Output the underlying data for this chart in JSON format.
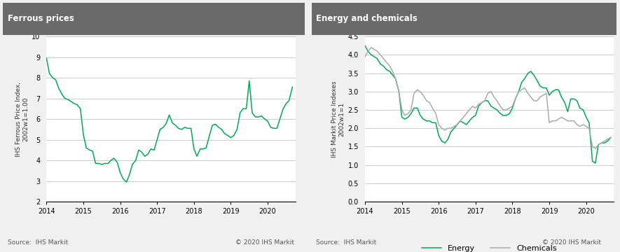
{
  "ferrous_title": "Ferrous prices",
  "energy_title": "Energy and chemicals",
  "ferrous_ylabel": "IHS Ferrous Price Index,\n2002w1=1.00",
  "energy_ylabel": "IHS Markit Price Indexes\n2002w1=1",
  "source_left": "Source:  IHS Markit",
  "source_right": "© 2020 IHS Markit",
  "title_bg": "#6a6a6a",
  "title_color": "#ffffff",
  "ferrous_color": "#00aa55",
  "energy_color": "#00aa55",
  "chemicals_color": "#aaaaaa",
  "grid_color": "#cccccc",
  "bg_color": "#f0f0f0",
  "plot_bg": "#ffffff",
  "ferrous_ylim": [
    2.0,
    10.0
  ],
  "energy_ylim": [
    0.0,
    4.5
  ],
  "ferrous_yticks": [
    2.0,
    3.0,
    4.0,
    5.0,
    6.0,
    7.0,
    8.0,
    9.0,
    10.0
  ],
  "energy_yticks": [
    0.0,
    0.5,
    1.0,
    1.5,
    2.0,
    2.5,
    3.0,
    3.5,
    4.0,
    4.5
  ],
  "ferrous_x": [
    2014.0,
    2014.08,
    2014.17,
    2014.25,
    2014.33,
    2014.42,
    2014.5,
    2014.58,
    2014.67,
    2014.75,
    2014.83,
    2014.92,
    2015.0,
    2015.08,
    2015.17,
    2015.25,
    2015.33,
    2015.42,
    2015.5,
    2015.58,
    2015.67,
    2015.75,
    2015.83,
    2015.92,
    2016.0,
    2016.08,
    2016.17,
    2016.25,
    2016.33,
    2016.42,
    2016.5,
    2016.58,
    2016.67,
    2016.75,
    2016.83,
    2016.92,
    2017.0,
    2017.08,
    2017.17,
    2017.25,
    2017.33,
    2017.42,
    2017.5,
    2017.58,
    2017.67,
    2017.75,
    2017.83,
    2017.92,
    2018.0,
    2018.08,
    2018.17,
    2018.25,
    2018.33,
    2018.42,
    2018.5,
    2018.58,
    2018.67,
    2018.75,
    2018.83,
    2018.92,
    2019.0,
    2019.08,
    2019.17,
    2019.25,
    2019.33,
    2019.42,
    2019.5,
    2019.58,
    2019.67,
    2019.75,
    2019.83,
    2019.92,
    2020.0,
    2020.08,
    2020.17,
    2020.25,
    2020.33,
    2020.42,
    2020.5,
    2020.58,
    2020.67
  ],
  "ferrous_y": [
    8.95,
    8.2,
    8.0,
    7.9,
    7.5,
    7.2,
    7.0,
    6.95,
    6.85,
    6.75,
    6.7,
    6.5,
    5.25,
    4.6,
    4.5,
    4.45,
    3.85,
    3.85,
    3.8,
    3.85,
    3.85,
    4.0,
    4.1,
    3.9,
    3.4,
    3.1,
    2.95,
    3.3,
    3.8,
    4.0,
    4.5,
    4.4,
    4.2,
    4.3,
    4.55,
    4.5,
    5.0,
    5.5,
    5.6,
    5.8,
    6.2,
    5.8,
    5.7,
    5.55,
    5.5,
    5.6,
    5.55,
    5.55,
    4.55,
    4.2,
    4.55,
    4.55,
    4.6,
    5.2,
    5.7,
    5.75,
    5.6,
    5.5,
    5.3,
    5.2,
    5.1,
    5.2,
    5.5,
    6.3,
    6.5,
    6.5,
    7.85,
    6.3,
    6.1,
    6.1,
    6.15,
    6.0,
    5.9,
    5.6,
    5.55,
    5.55,
    6.0,
    6.5,
    6.75,
    6.9,
    7.55
  ],
  "energy_x": [
    2014.0,
    2014.08,
    2014.17,
    2014.25,
    2014.33,
    2014.42,
    2014.5,
    2014.58,
    2014.67,
    2014.75,
    2014.83,
    2014.92,
    2015.0,
    2015.08,
    2015.17,
    2015.25,
    2015.33,
    2015.42,
    2015.5,
    2015.58,
    2015.67,
    2015.75,
    2015.83,
    2015.92,
    2016.0,
    2016.08,
    2016.17,
    2016.25,
    2016.33,
    2016.42,
    2016.5,
    2016.58,
    2016.67,
    2016.75,
    2016.83,
    2016.92,
    2017.0,
    2017.08,
    2017.17,
    2017.25,
    2017.33,
    2017.42,
    2017.5,
    2017.58,
    2017.67,
    2017.75,
    2017.83,
    2017.92,
    2018.0,
    2018.08,
    2018.17,
    2018.25,
    2018.33,
    2018.42,
    2018.5,
    2018.58,
    2018.67,
    2018.75,
    2018.83,
    2018.92,
    2019.0,
    2019.08,
    2019.17,
    2019.25,
    2019.33,
    2019.42,
    2019.5,
    2019.58,
    2019.67,
    2019.75,
    2019.83,
    2019.92,
    2020.0,
    2020.08,
    2020.17,
    2020.25,
    2020.33,
    2020.42,
    2020.5,
    2020.58,
    2020.67
  ],
  "energy_y": [
    4.25,
    4.1,
    4.0,
    3.95,
    3.9,
    3.75,
    3.7,
    3.6,
    3.55,
    3.45,
    3.35,
    3.0,
    2.3,
    2.25,
    2.3,
    2.4,
    2.55,
    2.55,
    2.35,
    2.25,
    2.2,
    2.2,
    2.15,
    2.15,
    1.8,
    1.65,
    1.6,
    1.7,
    1.9,
    2.0,
    2.1,
    2.2,
    2.15,
    2.1,
    2.2,
    2.3,
    2.35,
    2.6,
    2.7,
    2.75,
    2.75,
    2.6,
    2.55,
    2.5,
    2.4,
    2.35,
    2.35,
    2.4,
    2.55,
    2.8,
    3.0,
    3.25,
    3.35,
    3.5,
    3.55,
    3.45,
    3.3,
    3.15,
    3.1,
    3.1,
    2.9,
    3.0,
    3.05,
    3.05,
    2.85,
    2.7,
    2.45,
    2.8,
    2.8,
    2.75,
    2.55,
    2.5,
    2.3,
    2.15,
    1.1,
    1.05,
    1.55,
    1.6,
    1.6,
    1.65,
    1.75
  ],
  "chemicals_y": [
    3.95,
    4.1,
    4.2,
    4.15,
    4.1,
    4.0,
    3.9,
    3.8,
    3.7,
    3.55,
    3.35,
    3.0,
    2.5,
    2.35,
    2.4,
    2.5,
    2.95,
    3.05,
    3.0,
    2.9,
    2.75,
    2.7,
    2.55,
    2.4,
    2.1,
    2.0,
    1.95,
    2.0,
    2.0,
    2.05,
    2.1,
    2.2,
    2.3,
    2.4,
    2.5,
    2.6,
    2.55,
    2.65,
    2.7,
    2.75,
    2.95,
    3.0,
    2.85,
    2.75,
    2.6,
    2.5,
    2.5,
    2.55,
    2.6,
    2.8,
    3.0,
    3.05,
    3.1,
    2.95,
    2.85,
    2.75,
    2.75,
    2.85,
    2.9,
    2.95,
    2.15,
    2.2,
    2.2,
    2.25,
    2.3,
    2.25,
    2.2,
    2.2,
    2.2,
    2.1,
    2.05,
    2.1,
    2.05,
    2.0,
    1.5,
    1.45,
    1.55,
    1.6,
    1.65,
    1.7,
    1.75
  ],
  "xticks": [
    2014,
    2015,
    2016,
    2017,
    2018,
    2019,
    2020
  ]
}
